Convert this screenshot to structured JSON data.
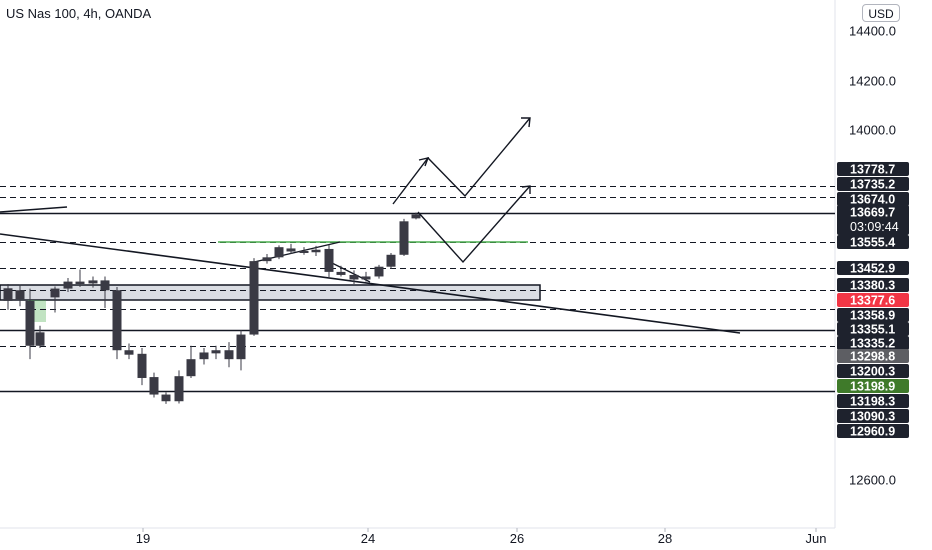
{
  "chart_title": "US Nas 100, 4h, OANDA",
  "currency_label": "USD",
  "colors": {
    "candle_up": "#3a3a44",
    "candle_down": "#3a3a44",
    "tag_dark": "#1e222d",
    "tag_red": "#f23645",
    "tag_green": "#3f7a2a",
    "tag_gray": "#5d5e63",
    "green_line": "#4caf50"
  },
  "chart_data": {
    "type": "candlestick",
    "title": "US Nas 100, 4h, OANDA",
    "y_axis": {
      "ylim": [
        12500,
        14600
      ],
      "tick_labels": [
        "14400.0",
        "14200.0",
        "14000.0",
        "12600.0"
      ]
    },
    "x_axis": {
      "tick_labels": [
        "19",
        "24",
        "26",
        "28",
        "Jun"
      ]
    },
    "price_tags": [
      {
        "label": "13778.7",
        "value": 13778.7,
        "style": "dark"
      },
      {
        "label": "13735.2",
        "value": 13735.2,
        "style": "dark"
      },
      {
        "label": "13674.0",
        "value": 13674.0,
        "style": "dark"
      },
      {
        "label": "13669.7",
        "value": 13669.7,
        "style": "dark",
        "countdown": "03:09:44"
      },
      {
        "label": "13555.4",
        "value": 13555.4,
        "style": "dark"
      },
      {
        "label": "13452.9",
        "value": 13452.9,
        "style": "dark"
      },
      {
        "label": "13380.3",
        "value": 13380.3,
        "style": "dark"
      },
      {
        "label": "13377.6",
        "value": 13377.6,
        "style": "red"
      },
      {
        "label": "13358.9",
        "value": 13358.9,
        "style": "dark"
      },
      {
        "label": "13355.1",
        "value": 13355.1,
        "style": "dark"
      },
      {
        "label": "13335.2",
        "value": 13335.2,
        "style": "dark"
      },
      {
        "label": "13298.8",
        "value": 13298.8,
        "style": "gray"
      },
      {
        "label": "13200.3",
        "value": 13200.3,
        "style": "dark"
      },
      {
        "label": "13198.9",
        "value": 13198.9,
        "style": "green"
      },
      {
        "label": "13198.3",
        "value": 13198.3,
        "style": "dark"
      },
      {
        "label": "13090.3",
        "value": 13090.3,
        "style": "dark"
      },
      {
        "label": "12960.9",
        "value": 12960.9,
        "style": "dark"
      }
    ],
    "horizontal_levels": [
      {
        "value": 13778.7,
        "style": "dashed"
      },
      {
        "value": 13735.2,
        "style": "dashed"
      },
      {
        "value": 13674.0,
        "style": "solid"
      },
      {
        "value": 13555.4,
        "style": "dashed"
      },
      {
        "value": 13452.9,
        "style": "dashed"
      },
      {
        "value": 13380.3,
        "style": "dashed"
      },
      {
        "value": 13358.9,
        "style": "dashed"
      },
      {
        "value": 13335.2,
        "style": "solid"
      },
      {
        "value": 13298.8,
        "style": "dashed"
      },
      {
        "value": 13198.9,
        "style": "solid"
      }
    ],
    "candles": [
      {
        "x": 8,
        "open": 13386,
        "high": 13400,
        "low": 13358,
        "close": 13368
      },
      {
        "x": 20,
        "open": 13380,
        "high": 13398,
        "low": 13362,
        "close": 13370
      },
      {
        "x": 30,
        "open": 13368,
        "high": 13385,
        "low": 13270,
        "close": 13300
      },
      {
        "x": 40,
        "open": 13300,
        "high": 13340,
        "low": 13295,
        "close": 13330
      },
      {
        "x": 55,
        "open": 13372,
        "high": 13392,
        "low": 13355,
        "close": 13385
      },
      {
        "x": 68,
        "open": 13385,
        "high": 13420,
        "low": 13378,
        "close": 13408
      },
      {
        "x": 80,
        "open": 13408,
        "high": 13448,
        "low": 13390,
        "close": 13400
      },
      {
        "x": 93,
        "open": 13402,
        "high": 13425,
        "low": 13388,
        "close": 13412
      },
      {
        "x": 105,
        "open": 13412,
        "high": 13425,
        "low": 13360,
        "close": 13380
      },
      {
        "x": 117,
        "open": 13380,
        "high": 13390,
        "low": 13270,
        "close": 13290
      },
      {
        "x": 129,
        "open": 13290,
        "high": 13305,
        "low": 13270,
        "close": 13280
      },
      {
        "x": 142,
        "open": 13282,
        "high": 13295,
        "low": 13212,
        "close": 13228
      },
      {
        "x": 154,
        "open": 13230,
        "high": 13240,
        "low": 13155,
        "close": 13175
      },
      {
        "x": 166,
        "open": 13175,
        "high": 13190,
        "low": 13112,
        "close": 13130
      },
      {
        "x": 179,
        "open": 13130,
        "high": 13245,
        "low": 13115,
        "close": 13232
      },
      {
        "x": 191,
        "open": 13232,
        "high": 13300,
        "low": 13228,
        "close": 13270
      },
      {
        "x": 204,
        "open": 13270,
        "high": 13295,
        "low": 13258,
        "close": 13285
      },
      {
        "x": 216,
        "open": 13283,
        "high": 13300,
        "low": 13270,
        "close": 13290
      },
      {
        "x": 229,
        "open": 13290,
        "high": 13308,
        "low": 13252,
        "close": 13270
      },
      {
        "x": 241,
        "open": 13270,
        "high": 13335,
        "low": 13245,
        "close": 13325
      },
      {
        "x": 254,
        "open": 13325,
        "high": 13492,
        "low": 13322,
        "close": 13480
      },
      {
        "x": 267,
        "open": 13480,
        "high": 13508,
        "low": 13470,
        "close": 13495
      },
      {
        "x": 279,
        "open": 13495,
        "high": 13542,
        "low": 13488,
        "close": 13535
      },
      {
        "x": 291,
        "open": 13530,
        "high": 13548,
        "low": 13508,
        "close": 13518
      },
      {
        "x": 304,
        "open": 13520,
        "high": 13535,
        "low": 13505,
        "close": 13512
      },
      {
        "x": 316,
        "open": 13515,
        "high": 13540,
        "low": 13500,
        "close": 13525
      },
      {
        "x": 329,
        "open": 13528,
        "high": 13545,
        "low": 13420,
        "close": 13440
      },
      {
        "x": 341,
        "open": 13440,
        "high": 13462,
        "low": 13425,
        "close": 13430
      },
      {
        "x": 354,
        "open": 13430,
        "high": 13445,
        "low": 13400,
        "close": 13415
      },
      {
        "x": 366,
        "open": 13415,
        "high": 13440,
        "low": 13408,
        "close": 13425
      },
      {
        "x": 379,
        "open": 13425,
        "high": 13465,
        "low": 13418,
        "close": 13458
      },
      {
        "x": 391,
        "open": 13458,
        "high": 13512,
        "low": 13450,
        "close": 13505
      },
      {
        "x": 404,
        "open": 13505,
        "high": 13650,
        "low": 13500,
        "close": 13640
      },
      {
        "x": 416,
        "open": 13668,
        "high": 13676,
        "low": 13648,
        "close": 13652
      }
    ]
  }
}
